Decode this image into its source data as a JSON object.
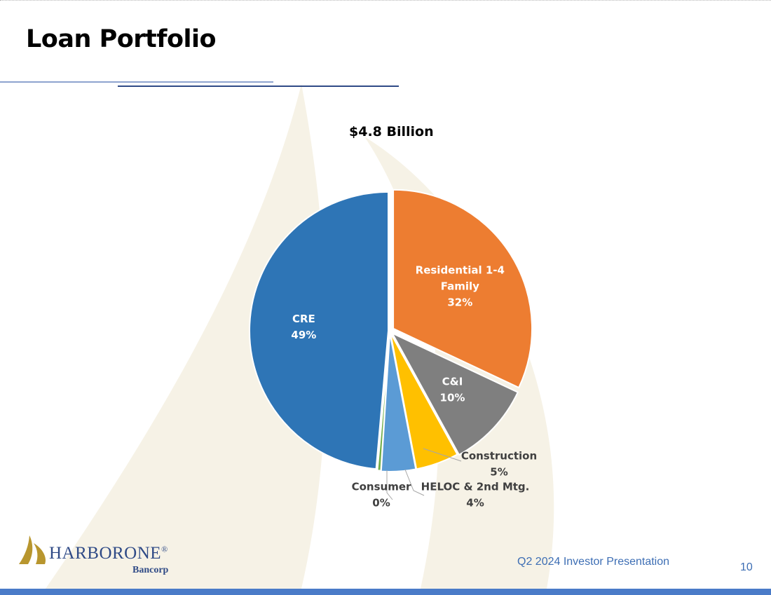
{
  "slide": {
    "title": "Loan Portfolio",
    "footer": "Q2 2024 Investor Presentation",
    "page_number": "10"
  },
  "logo": {
    "name": "HARBORONE",
    "registered": "®",
    "sub": "Bancorp"
  },
  "colors": {
    "cre": "#2e75b6",
    "residential": "#ed7d31",
    "ci": "#7f7f7f",
    "construction": "#ffc000",
    "heloc": "#5b9bd5",
    "consumer": "#70ad47",
    "title_rule_light": "#8ea3cf",
    "title_rule_dark": "#2f4a86",
    "footer_blue": "#3d6eb4",
    "bottom_bar": "#4a7bc8",
    "logo_gold": "#b8962e",
    "sail_background": "#f6f2e6"
  },
  "chart_data": {
    "type": "pie",
    "title": "$4.8 Billion",
    "categories": [
      "Residential 1-4 Family",
      "C&I",
      "Construction",
      "HELOC & 2nd Mtg.",
      "Consumer",
      "CRE"
    ],
    "values": [
      32,
      10,
      5,
      4,
      0.4,
      48.6
    ],
    "value_labels": [
      "32%",
      "10%",
      "5%",
      "4%",
      "0%",
      "49%"
    ],
    "colors": [
      "#ed7d31",
      "#7f7f7f",
      "#ffc000",
      "#5b9bd5",
      "#70ad47",
      "#2e75b6"
    ],
    "label_positions": [
      "inside",
      "inside",
      "outside",
      "outside",
      "outside",
      "inside"
    ],
    "start_angle_deg": 0,
    "direction": "clockwise"
  }
}
